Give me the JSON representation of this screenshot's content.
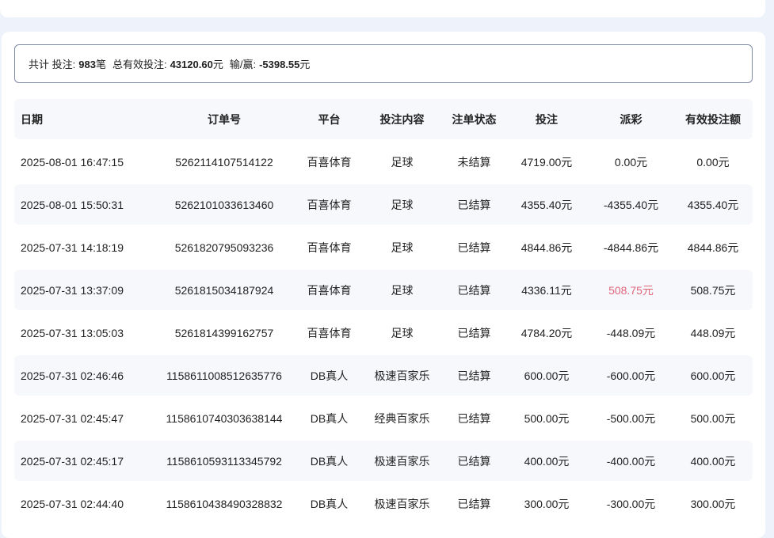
{
  "colors": {
    "background": "#eef2fa",
    "primary_button": "#4a8ff5",
    "positive_payout": "#e0657a"
  },
  "summary": {
    "total_label": "共计 投注:",
    "total_count": "983",
    "total_unit": "笔",
    "effective_label": "总有效投注:",
    "effective_value": "43120.60",
    "effective_unit": "元",
    "winloss_label": "输/赢:",
    "winloss_value": "-5398.55",
    "winloss_unit": "元"
  },
  "table": {
    "headers": [
      "日期",
      "订单号",
      "平台",
      "投注内容",
      "注单状态",
      "投注",
      "派彩",
      "有效投注额"
    ],
    "rows": [
      [
        "2025-08-01 16:47:15",
        "5262114107514122",
        "百喜体育",
        "足球",
        "未结算",
        "4719.00元",
        "0.00元",
        "0.00元"
      ],
      [
        "2025-08-01 15:50:31",
        "5262101033613460",
        "百喜体育",
        "足球",
        "已结算",
        "4355.40元",
        "-4355.40元",
        "4355.40元"
      ],
      [
        "2025-07-31 14:18:19",
        "5261820795093236",
        "百喜体育",
        "足球",
        "已结算",
        "4844.86元",
        "-4844.86元",
        "4844.86元"
      ],
      [
        "2025-07-31 13:37:09",
        "5261815034187924",
        "百喜体育",
        "足球",
        "已结算",
        "4336.11元",
        "508.75元",
        "508.75元"
      ],
      [
        "2025-07-31 13:05:03",
        "5261814399162757",
        "百喜体育",
        "足球",
        "已结算",
        "4784.20元",
        "-448.09元",
        "448.09元"
      ],
      [
        "2025-07-31 02:46:46",
        "1158611008512635776",
        "DB真人",
        "极速百家乐",
        "已结算",
        "600.00元",
        "-600.00元",
        "600.00元"
      ],
      [
        "2025-07-31 02:45:47",
        "1158610740303638144",
        "DB真人",
        "经典百家乐",
        "已结算",
        "500.00元",
        "-500.00元",
        "500.00元"
      ],
      [
        "2025-07-31 02:45:17",
        "1158610593113345792",
        "DB真人",
        "极速百家乐",
        "已结算",
        "400.00元",
        "-400.00元",
        "400.00元"
      ],
      [
        "2025-07-31 02:44:40",
        "1158610438490328832",
        "DB真人",
        "极速百家乐",
        "已结算",
        "300.00元",
        "-300.00元",
        "300.00元"
      ]
    ]
  }
}
